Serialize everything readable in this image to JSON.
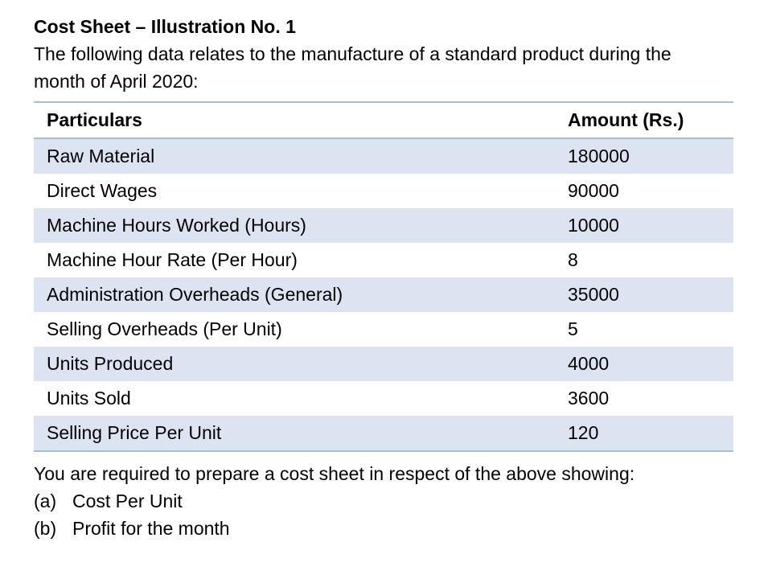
{
  "heading": "Cost Sheet – Illustration No. 1",
  "intro": "The following data relates to the manufacture of a standard product during the month of April 2020:",
  "table": {
    "headers": [
      "Particulars",
      "Amount (Rs.)"
    ],
    "rows": [
      {
        "particular": "Raw Material",
        "amount": "180000"
      },
      {
        "particular": "Direct Wages",
        "amount": "90000"
      },
      {
        "particular": "Machine Hours Worked (Hours)",
        "amount": "10000"
      },
      {
        "particular": "Machine Hour Rate (Per Hour)",
        "amount": "8"
      },
      {
        "particular": "Administration Overheads (General)",
        "amount": "35000"
      },
      {
        "particular": "Selling Overheads (Per Unit)",
        "amount": "5"
      },
      {
        "particular": "Units Produced",
        "amount": "4000"
      },
      {
        "particular": "Units Sold",
        "amount": "3600"
      },
      {
        "particular": "Selling Price Per Unit",
        "amount": "120"
      }
    ],
    "band_color": "#dce4f1",
    "rule_color": "#a8bedb"
  },
  "requirement": {
    "text": "You are required to prepare a cost sheet in respect of the above showing:",
    "items": [
      {
        "marker": "(a)",
        "text": "Cost Per Unit"
      },
      {
        "marker": "(b)",
        "text": "Profit for the month"
      }
    ]
  }
}
